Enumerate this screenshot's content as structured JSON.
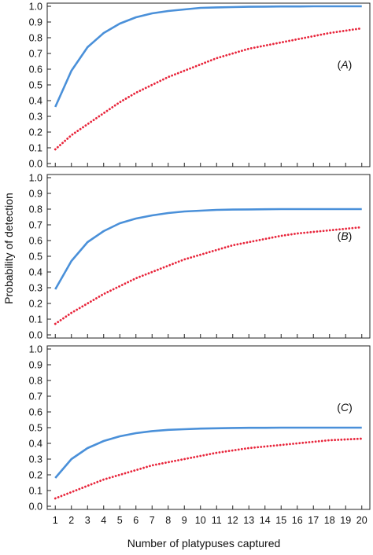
{
  "chart_data": {
    "type": "line",
    "xlabel": "Number of platypuses captured",
    "ylabel": "Probability of detection",
    "x": [
      1,
      2,
      3,
      4,
      5,
      6,
      7,
      8,
      9,
      10,
      11,
      12,
      13,
      14,
      15,
      16,
      17,
      18,
      19,
      20
    ],
    "xlim": [
      0.5,
      20.5
    ],
    "ylim": [
      0,
      1
    ],
    "yticks": [
      0,
      0.1,
      0.2,
      0.3,
      0.4,
      0.5,
      0.6,
      0.7,
      0.8,
      0.9,
      1.0
    ],
    "grid": false,
    "colors": {
      "solid": "#4a90d9",
      "dotted": "#e8263c"
    },
    "panels": [
      {
        "label": "(A)",
        "series": [
          {
            "style": "solid",
            "color": "#4a90d9",
            "values": [
              0.36,
              0.59,
              0.74,
              0.83,
              0.89,
              0.93,
              0.955,
              0.97,
              0.98,
              0.99,
              0.993,
              0.995,
              0.997,
              0.998,
              0.999,
              0.999,
              1.0,
              1.0,
              1.0,
              1.0
            ]
          },
          {
            "style": "dotted",
            "color": "#e8263c",
            "values": [
              0.09,
              0.18,
              0.25,
              0.32,
              0.39,
              0.45,
              0.5,
              0.55,
              0.59,
              0.63,
              0.67,
              0.7,
              0.73,
              0.75,
              0.77,
              0.79,
              0.81,
              0.83,
              0.845,
              0.86
            ]
          }
        ]
      },
      {
        "label": "(B)",
        "series": [
          {
            "style": "solid",
            "color": "#4a90d9",
            "values": [
              0.29,
              0.47,
              0.59,
              0.66,
              0.71,
              0.74,
              0.76,
              0.775,
              0.785,
              0.79,
              0.795,
              0.797,
              0.798,
              0.799,
              0.8,
              0.8,
              0.8,
              0.8,
              0.8,
              0.8
            ]
          },
          {
            "style": "dotted",
            "color": "#e8263c",
            "values": [
              0.07,
              0.14,
              0.2,
              0.26,
              0.31,
              0.36,
              0.4,
              0.44,
              0.48,
              0.51,
              0.54,
              0.57,
              0.59,
              0.61,
              0.63,
              0.645,
              0.655,
              0.665,
              0.675,
              0.685
            ]
          }
        ]
      },
      {
        "label": "(C)",
        "series": [
          {
            "style": "solid",
            "color": "#4a90d9",
            "values": [
              0.18,
              0.3,
              0.37,
              0.415,
              0.445,
              0.465,
              0.478,
              0.486,
              0.49,
              0.494,
              0.496,
              0.498,
              0.499,
              0.499,
              0.5,
              0.5,
              0.5,
              0.5,
              0.5,
              0.5
            ]
          },
          {
            "style": "dotted",
            "color": "#e8263c",
            "values": [
              0.05,
              0.09,
              0.13,
              0.17,
              0.2,
              0.23,
              0.26,
              0.28,
              0.3,
              0.32,
              0.34,
              0.355,
              0.37,
              0.38,
              0.39,
              0.4,
              0.41,
              0.42,
              0.425,
              0.43
            ]
          }
        ]
      }
    ]
  }
}
